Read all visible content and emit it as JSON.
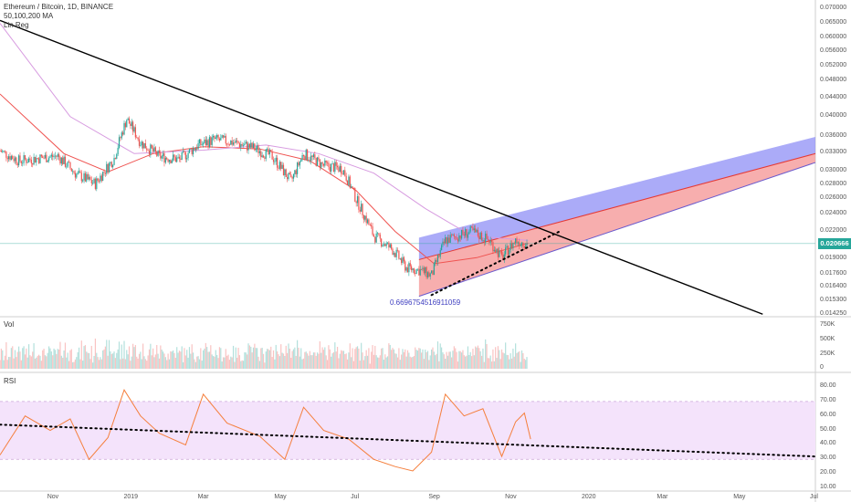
{
  "legend": {
    "symbol_line": "Ethereum / Bitcoin, 1D, BINANCE",
    "ma_line": "50,100,200 MA",
    "linreg_line": "Lin Reg"
  },
  "price_axis": {
    "ticks": [
      "0.070000",
      "0.065000",
      "0.060000",
      "0.056000",
      "0.052000",
      "0.048000",
      "0.044000",
      "0.040000",
      "0.036000",
      "0.033000",
      "0.030000",
      "0.028000",
      "0.026000",
      "0.024000",
      "0.022000",
      "0.019000",
      "0.017600",
      "0.016400",
      "0.015300",
      "0.014250"
    ],
    "current_price": "0.020666",
    "current_color": "#26a69a"
  },
  "annotation": {
    "text": "0.6696754516911059",
    "color": "#3d3dbf"
  },
  "volume_pane": {
    "title": "Vol",
    "ticks": [
      "750K",
      "500K",
      "250K",
      "0"
    ]
  },
  "rsi_pane": {
    "title": "RSI",
    "ticks": [
      "80.00",
      "70.00",
      "60.00",
      "50.00",
      "40.00",
      "30.00",
      "20.00",
      "10.00"
    ],
    "upper_band": 70,
    "lower_band": 30
  },
  "time_axis": {
    "labels": [
      "Nov",
      "2019",
      "Mar",
      "May",
      "Jul",
      "Sep",
      "Nov",
      "2020",
      "Mar",
      "May",
      "Jul"
    ]
  },
  "colors": {
    "up": "#26a69a",
    "down": "#ef5350",
    "ma_fast": "#ef5350",
    "ma_slow": "#d79be0",
    "channel_upper": "#8f8ff5",
    "channel_lower": "#f59a9a",
    "rsi_line": "#f57f3c",
    "rsi_band": "#f4e3fb",
    "trendline": "#000000"
  },
  "chart_data": {
    "type": "candlestick",
    "title": "Ethereum / Bitcoin, 1D, BINANCE",
    "x_range": [
      "2018-09-20",
      "2020-07-01"
    ],
    "y_scale": "log",
    "y_range": [
      0.01425,
      0.07
    ],
    "price_series": [
      {
        "date": "2018-09-20",
        "close": 0.0335
      },
      {
        "date": "2018-10-05",
        "close": 0.0318
      },
      {
        "date": "2018-10-20",
        "close": 0.0322
      },
      {
        "date": "2018-11-05",
        "close": 0.0326
      },
      {
        "date": "2018-11-20",
        "close": 0.0296
      },
      {
        "date": "2018-12-05",
        "close": 0.0282
      },
      {
        "date": "2018-12-20",
        "close": 0.0322
      },
      {
        "date": "2018-12-30",
        "close": 0.0395
      },
      {
        "date": "2019-01-10",
        "close": 0.035
      },
      {
        "date": "2019-01-25",
        "close": 0.0325
      },
      {
        "date": "2019-02-10",
        "close": 0.032
      },
      {
        "date": "2019-02-25",
        "close": 0.0345
      },
      {
        "date": "2019-03-10",
        "close": 0.0355
      },
      {
        "date": "2019-03-25",
        "close": 0.035
      },
      {
        "date": "2019-04-10",
        "close": 0.034
      },
      {
        "date": "2019-04-25",
        "close": 0.0325
      },
      {
        "date": "2019-05-10",
        "close": 0.0285
      },
      {
        "date": "2019-05-20",
        "close": 0.033
      },
      {
        "date": "2019-06-05",
        "close": 0.031
      },
      {
        "date": "2019-06-20",
        "close": 0.0305
      },
      {
        "date": "2019-07-01",
        "close": 0.026
      },
      {
        "date": "2019-07-15",
        "close": 0.0215
      },
      {
        "date": "2019-07-30",
        "close": 0.02
      },
      {
        "date": "2019-08-10",
        "close": 0.0182
      },
      {
        "date": "2019-08-20",
        "close": 0.018
      },
      {
        "date": "2019-08-30",
        "close": 0.0175
      },
      {
        "date": "2019-09-10",
        "close": 0.021
      },
      {
        "date": "2019-09-20",
        "close": 0.0215
      },
      {
        "date": "2019-10-01",
        "close": 0.022
      },
      {
        "date": "2019-10-15",
        "close": 0.021
      },
      {
        "date": "2019-10-25",
        "close": 0.0192
      },
      {
        "date": "2019-11-05",
        "close": 0.021
      },
      {
        "date": "2019-11-15",
        "close": 0.0206666
      }
    ],
    "moving_averages": [
      {
        "name": "MA 50",
        "points": [
          [
            "2018-09-20",
            0.045
          ],
          [
            "2018-11-10",
            0.033
          ],
          [
            "2018-12-15",
            0.03
          ],
          [
            "2019-01-20",
            0.033
          ],
          [
            "2019-03-01",
            0.0342
          ],
          [
            "2019-04-15",
            0.0338
          ],
          [
            "2019-05-25",
            0.0318
          ],
          [
            "2019-07-01",
            0.0272
          ],
          [
            "2019-08-01",
            0.022
          ],
          [
            "2019-09-01",
            0.0186
          ],
          [
            "2019-10-05",
            0.0192
          ],
          [
            "2019-11-15",
            0.0207
          ]
        ]
      },
      {
        "name": "MA 200",
        "points": [
          [
            "2018-09-20",
            0.065
          ],
          [
            "2018-11-15",
            0.04
          ],
          [
            "2019-01-05",
            0.033
          ],
          [
            "2019-03-01",
            0.0336
          ],
          [
            "2019-04-20",
            0.0345
          ],
          [
            "2019-06-01",
            0.033
          ],
          [
            "2019-07-15",
            0.0298
          ],
          [
            "2019-08-25",
            0.0248
          ],
          [
            "2019-10-01",
            0.0215
          ],
          [
            "2019-11-15",
            0.021
          ]
        ]
      }
    ],
    "regression_channel": {
      "start_date": "2019-08-20",
      "end_date": "2020-07-01",
      "upper": [
        0.0213,
        0.036
      ],
      "mid": [
        0.019,
        0.033
      ],
      "lower": [
        0.0157,
        0.0315
      ]
    },
    "trendlines": [
      {
        "style": "solid",
        "points": [
          [
            "2018-09-20",
            0.066
          ],
          [
            "2020-05-20",
            0.0143
          ]
        ]
      },
      {
        "style": "dotted",
        "points": [
          [
            "2019-08-30",
            0.0158
          ],
          [
            "2019-12-10",
            0.022
          ]
        ]
      }
    ],
    "rsi": {
      "range": [
        10,
        80
      ],
      "points": [
        [
          "2018-09-20",
          33
        ],
        [
          "2018-10-10",
          60
        ],
        [
          "2018-10-30",
          50
        ],
        [
          "2018-11-15",
          58
        ],
        [
          "2018-11-30",
          30
        ],
        [
          "2018-12-15",
          45
        ],
        [
          "2018-12-28",
          78
        ],
        [
          "2019-01-10",
          60
        ],
        [
          "2019-01-25",
          48
        ],
        [
          "2019-02-15",
          40
        ],
        [
          "2019-03-01",
          75
        ],
        [
          "2019-03-20",
          55
        ],
        [
          "2019-04-15",
          46
        ],
        [
          "2019-05-05",
          30
        ],
        [
          "2019-05-20",
          66
        ],
        [
          "2019-06-05",
          50
        ],
        [
          "2019-06-25",
          44
        ],
        [
          "2019-07-15",
          30
        ],
        [
          "2019-08-01",
          25
        ],
        [
          "2019-08-15",
          22
        ],
        [
          "2019-08-30",
          35
        ],
        [
          "2019-09-10",
          75
        ],
        [
          "2019-09-25",
          60
        ],
        [
          "2019-10-10",
          65
        ],
        [
          "2019-10-25",
          32
        ],
        [
          "2019-11-05",
          56
        ],
        [
          "2019-11-12",
          62
        ],
        [
          "2019-11-17",
          44
        ]
      ],
      "trendline": [
        [
          "2018-09-20",
          54
        ],
        [
          "2020-07-01",
          32
        ]
      ]
    }
  }
}
